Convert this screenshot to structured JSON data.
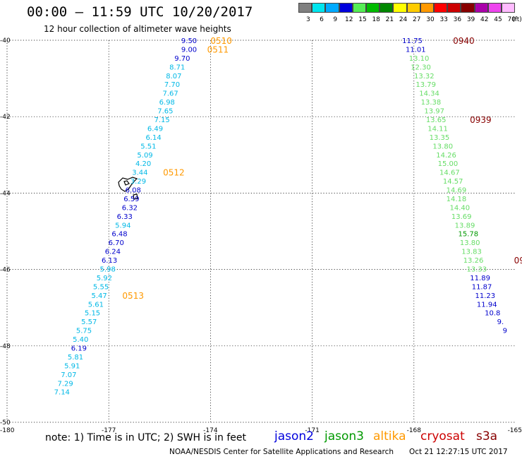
{
  "header": {
    "title": "00:00 – 11:59 UTC 10/20/2017",
    "subtitle": "12 hour collection of altimeter wave heights"
  },
  "legend": {
    "unit": "(ft)",
    "items": [
      {
        "label": "3",
        "color": "#808080"
      },
      {
        "label": "6",
        "color": "#00e5ee"
      },
      {
        "label": "9",
        "color": "#00aaff"
      },
      {
        "label": "12",
        "color": "#0000dd"
      },
      {
        "label": "15",
        "color": "#55ee55"
      },
      {
        "label": "18",
        "color": "#00bb00"
      },
      {
        "label": "21",
        "color": "#008800"
      },
      {
        "label": "24",
        "color": "#ffff00"
      },
      {
        "label": "27",
        "color": "#ffcc00"
      },
      {
        "label": "30",
        "color": "#ff9900"
      },
      {
        "label": "33",
        "color": "#ff0000"
      },
      {
        "label": "36",
        "color": "#cc0000"
      },
      {
        "label": "39",
        "color": "#880000"
      },
      {
        "label": "42",
        "color": "#aa00aa"
      },
      {
        "label": "45",
        "color": "#ee44ee"
      },
      {
        "label": "70",
        "color": "#ffbbff"
      }
    ]
  },
  "axes": {
    "lon_ticks": [
      "-180",
      "-177",
      "-174",
      "-171",
      "-168",
      "-165"
    ],
    "lat_ticks": [
      "-40",
      "-42",
      "-44",
      "-46",
      "-48",
      "-50"
    ]
  },
  "tracks": {
    "west": {
      "colors": {
        "cyan": "#00b8e6",
        "blue": "#0000cc"
      },
      "values": [
        {
          "text": "9.50",
          "lon": -174.4,
          "lat": -40.0,
          "color": "blue"
        },
        {
          "text": "9.00",
          "lon": -174.4,
          "lat": -40.23,
          "color": "blue"
        },
        {
          "text": "9.70",
          "lon": -174.6,
          "lat": -40.46,
          "color": "blue"
        },
        {
          "text": "8.71",
          "lon": -174.75,
          "lat": -40.69,
          "color": "cyan"
        },
        {
          "text": "8.07",
          "lon": -174.85,
          "lat": -40.92,
          "color": "cyan"
        },
        {
          "text": "7.70",
          "lon": -174.9,
          "lat": -41.15,
          "color": "cyan"
        },
        {
          "text": "7.67",
          "lon": -174.95,
          "lat": -41.38,
          "color": "cyan"
        },
        {
          "text": "6.98",
          "lon": -175.05,
          "lat": -41.61,
          "color": "cyan"
        },
        {
          "text": "7.65",
          "lon": -175.1,
          "lat": -41.84,
          "color": "cyan"
        },
        {
          "text": "7.15",
          "lon": -175.2,
          "lat": -42.07,
          "color": "cyan"
        },
        {
          "text": "6.49",
          "lon": -175.4,
          "lat": -42.3,
          "color": "cyan"
        },
        {
          "text": "6.14",
          "lon": -175.45,
          "lat": -42.53,
          "color": "cyan"
        },
        {
          "text": "5.51",
          "lon": -175.6,
          "lat": -42.76,
          "color": "cyan"
        },
        {
          "text": "5.09",
          "lon": -175.7,
          "lat": -42.99,
          "color": "cyan"
        },
        {
          "text": "4.20",
          "lon": -175.75,
          "lat": -43.22,
          "color": "cyan"
        },
        {
          "text": "3.44",
          "lon": -175.85,
          "lat": -43.45,
          "color": "cyan"
        },
        {
          "text": "3.29",
          "lon": -175.9,
          "lat": -43.68,
          "color": "cyan"
        },
        {
          "text": "6.08",
          "lon": -176.05,
          "lat": -43.91,
          "color": "blue"
        },
        {
          "text": "6.59",
          "lon": -176.1,
          "lat": -44.14,
          "color": "blue"
        },
        {
          "text": "6.32",
          "lon": -176.15,
          "lat": -44.37,
          "color": "blue"
        },
        {
          "text": "6.33",
          "lon": -176.3,
          "lat": -44.6,
          "color": "blue"
        },
        {
          "text": "5.94",
          "lon": -176.35,
          "lat": -44.83,
          "color": "cyan"
        },
        {
          "text": "6.48",
          "lon": -176.45,
          "lat": -45.06,
          "color": "blue"
        },
        {
          "text": "6.70",
          "lon": -176.55,
          "lat": -45.29,
          "color": "blue"
        },
        {
          "text": "6.24",
          "lon": -176.65,
          "lat": -45.52,
          "color": "blue"
        },
        {
          "text": "6.13",
          "lon": -176.75,
          "lat": -45.75,
          "color": "blue"
        },
        {
          "text": "5.98",
          "lon": -176.8,
          "lat": -45.98,
          "color": "cyan"
        },
        {
          "text": "5.92",
          "lon": -176.9,
          "lat": -46.21,
          "color": "cyan"
        },
        {
          "text": "5.55",
          "lon": -177.0,
          "lat": -46.44,
          "color": "cyan"
        },
        {
          "text": "5.47",
          "lon": -177.05,
          "lat": -46.67,
          "color": "cyan"
        },
        {
          "text": "5.61",
          "lon": -177.15,
          "lat": -46.9,
          "color": "cyan"
        },
        {
          "text": "5.15",
          "lon": -177.25,
          "lat": -47.13,
          "color": "cyan"
        },
        {
          "text": "5.57",
          "lon": -177.35,
          "lat": -47.36,
          "color": "cyan"
        },
        {
          "text": "5.75",
          "lon": -177.5,
          "lat": -47.59,
          "color": "cyan"
        },
        {
          "text": "5.40",
          "lon": -177.6,
          "lat": -47.82,
          "color": "cyan"
        },
        {
          "text": "6.19",
          "lon": -177.65,
          "lat": -48.05,
          "color": "blue"
        },
        {
          "text": "5.81",
          "lon": -177.75,
          "lat": -48.28,
          "color": "cyan"
        },
        {
          "text": "5.91",
          "lon": -177.85,
          "lat": -48.51,
          "color": "cyan"
        },
        {
          "text": "7.07",
          "lon": -177.95,
          "lat": -48.74,
          "color": "cyan"
        },
        {
          "text": "7.29",
          "lon": -178.05,
          "lat": -48.97,
          "color": "cyan"
        },
        {
          "text": "7.14",
          "lon": -178.15,
          "lat": -49.2,
          "color": "cyan"
        }
      ],
      "time_labels": [
        {
          "text": "0510",
          "lon": -174.0,
          "lat": -40.0,
          "color": "#ff9900"
        },
        {
          "text": "0511",
          "lon": -174.1,
          "lat": -40.23,
          "color": "#ff9900"
        },
        {
          "text": "0512",
          "lon": -175.4,
          "lat": -43.45,
          "color": "#ff9900"
        },
        {
          "text": "0513",
          "lon": -176.6,
          "lat": -46.67,
          "color": "#ff9900"
        }
      ]
    },
    "east": {
      "colors": {
        "green": "#66dd66",
        "dgreen": "#009900",
        "blue": "#0000cc"
      },
      "values": [
        {
          "text": "11.75",
          "lon": -167.75,
          "lat": -40.0,
          "color": "blue"
        },
        {
          "text": "11.01",
          "lon": -167.65,
          "lat": -40.23,
          "color": "blue"
        },
        {
          "text": "13.10",
          "lon": -167.55,
          "lat": -40.46,
          "color": "green"
        },
        {
          "text": "12.30",
          "lon": -167.5,
          "lat": -40.69,
          "color": "green"
        },
        {
          "text": "13.32",
          "lon": -167.4,
          "lat": -40.92,
          "color": "green"
        },
        {
          "text": "13.79",
          "lon": -167.35,
          "lat": -41.15,
          "color": "green"
        },
        {
          "text": "14.34",
          "lon": -167.25,
          "lat": -41.38,
          "color": "green"
        },
        {
          "text": "13.38",
          "lon": -167.2,
          "lat": -41.61,
          "color": "green"
        },
        {
          "text": "13.97",
          "lon": -167.1,
          "lat": -41.84,
          "color": "green"
        },
        {
          "text": "13.65",
          "lon": -167.05,
          "lat": -42.07,
          "color": "green"
        },
        {
          "text": "14.11",
          "lon": -167.0,
          "lat": -42.3,
          "color": "green"
        },
        {
          "text": "13.35",
          "lon": -166.95,
          "lat": -42.53,
          "color": "green"
        },
        {
          "text": "13.80",
          "lon": -166.85,
          "lat": -42.76,
          "color": "green"
        },
        {
          "text": "14.26",
          "lon": -166.75,
          "lat": -42.99,
          "color": "green"
        },
        {
          "text": "15.00",
          "lon": -166.7,
          "lat": -43.22,
          "color": "green"
        },
        {
          "text": "14.67",
          "lon": -166.65,
          "lat": -43.45,
          "color": "green"
        },
        {
          "text": "14.57",
          "lon": -166.55,
          "lat": -43.68,
          "color": "green"
        },
        {
          "text": "14.69",
          "lon": -166.45,
          "lat": -43.91,
          "color": "green"
        },
        {
          "text": "14.18",
          "lon": -166.45,
          "lat": -44.14,
          "color": "green"
        },
        {
          "text": "14.40",
          "lon": -166.35,
          "lat": -44.37,
          "color": "green"
        },
        {
          "text": "13.69",
          "lon": -166.3,
          "lat": -44.6,
          "color": "green"
        },
        {
          "text": "13.89",
          "lon": -166.2,
          "lat": -44.83,
          "color": "green"
        },
        {
          "text": "15.78",
          "lon": -166.1,
          "lat": -45.06,
          "color": "dgreen"
        },
        {
          "text": "13.80",
          "lon": -166.05,
          "lat": -45.29,
          "color": "green"
        },
        {
          "text": "13.83",
          "lon": -166.0,
          "lat": -45.52,
          "color": "green"
        },
        {
          "text": "13.26",
          "lon": -165.95,
          "lat": -45.75,
          "color": "green"
        },
        {
          "text": "13.33",
          "lon": -165.85,
          "lat": -45.98,
          "color": "green"
        },
        {
          "text": "11.89",
          "lon": -165.75,
          "lat": -46.21,
          "color": "blue"
        },
        {
          "text": "11.87",
          "lon": -165.7,
          "lat": -46.44,
          "color": "blue"
        },
        {
          "text": "11.23",
          "lon": -165.6,
          "lat": -46.67,
          "color": "blue"
        },
        {
          "text": "11.94",
          "lon": -165.55,
          "lat": -46.9,
          "color": "blue"
        },
        {
          "text": "10.8",
          "lon": -165.45,
          "lat": -47.13,
          "color": "blue"
        },
        {
          "text": "9.",
          "lon": -165.35,
          "lat": -47.36,
          "color": "blue"
        },
        {
          "text": "9",
          "lon": -165.25,
          "lat": -47.59,
          "color": "blue"
        }
      ],
      "time_labels": [
        {
          "text": "0940",
          "lon": -166.85,
          "lat": -40.0,
          "color": "#880000"
        },
        {
          "text": "0939",
          "lon": -166.35,
          "lat": -42.07,
          "color": "#880000"
        },
        {
          "text": "09",
          "lon": -165.05,
          "lat": -45.75,
          "color": "#880000"
        }
      ]
    }
  },
  "footer": {
    "note": "note: 1) Time is in UTC; 2) SWH is in feet",
    "satellites": [
      {
        "name": "jason2",
        "color": "#0000dd"
      },
      {
        "name": "jason3",
        "color": "#009900"
      },
      {
        "name": "altika",
        "color": "#ff9900"
      },
      {
        "name": "cryosat",
        "color": "#cc0000"
      },
      {
        "name": "s3a",
        "color": "#880000"
      }
    ],
    "credit": "NOAA/NESDIS Center for Satellite Applications and Research",
    "generated": "Oct 21 12:27:15 UTC 2017"
  }
}
